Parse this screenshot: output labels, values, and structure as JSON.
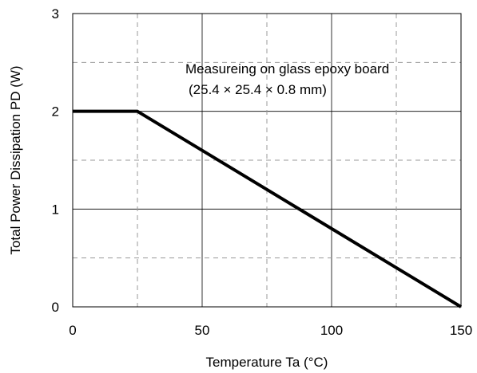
{
  "chart_data": {
    "type": "line",
    "title": "",
    "xlabel": "Temperature Ta (°C)",
    "ylabel": "Total Power Dissipation PD (W)",
    "xlim": [
      0,
      150
    ],
    "ylim": [
      0,
      3
    ],
    "x_ticks": [
      0,
      50,
      100,
      150
    ],
    "y_ticks": [
      0,
      1,
      2,
      3
    ],
    "x_minor_grid": [
      25,
      75,
      125
    ],
    "y_minor_grid": [
      0.5,
      1.5,
      2.5
    ],
    "grid": true,
    "series": [
      {
        "x": [
          0,
          25,
          150
        ],
        "y": [
          2,
          2,
          0
        ],
        "color": "#000000"
      }
    ],
    "annotations": [
      "Measureing on glass epoxy board",
      "(25.4 × 25.4 × 0.8 mm)"
    ]
  }
}
